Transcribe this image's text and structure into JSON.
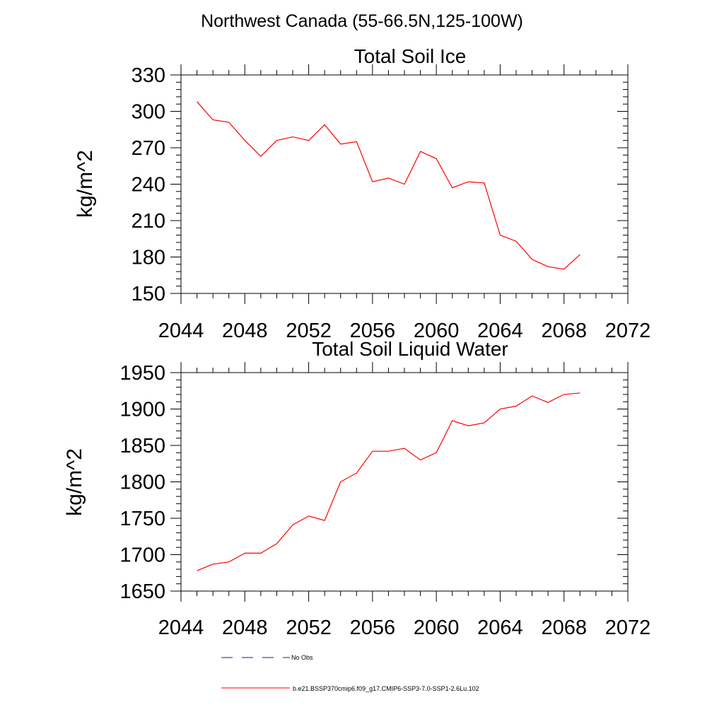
{
  "figure": {
    "title": "Northwest Canada (55-66.5N,125-100W)",
    "line_color": "#ff0000",
    "obs_color": "#1a1a80",
    "legend": {
      "obs_label": "No Obs",
      "model_label": "b.e21.BSSP370cmip6.f09_g17.CMIP6-SSP3-7.0-SSP1-2.6Lu.102"
    }
  },
  "chart_data": [
    {
      "type": "line",
      "title": "Total Soil Ice",
      "xlabel": "",
      "ylabel": "kg/m^2",
      "xlim": [
        2044,
        2072
      ],
      "ylim": [
        150,
        330
      ],
      "xticks": [
        2044,
        2048,
        2052,
        2056,
        2060,
        2064,
        2068,
        2072
      ],
      "yticks": [
        150,
        180,
        210,
        240,
        270,
        300,
        330
      ],
      "grid": false,
      "series": [
        {
          "name": "b.e21.BSSP370cmip6.f09_g17.CMIP6-SSP3-7.0-SSP1-2.6Lu.102",
          "x": [
            2045,
            2046,
            2047,
            2048,
            2049,
            2050,
            2051,
            2052,
            2053,
            2054,
            2055,
            2056,
            2057,
            2058,
            2059,
            2060,
            2061,
            2062,
            2063,
            2064,
            2065,
            2066,
            2067,
            2068,
            2069
          ],
          "values": [
            308,
            293,
            291,
            276,
            263,
            276,
            279,
            276,
            289,
            273,
            275,
            242,
            245,
            240,
            267,
            261,
            237,
            242,
            241,
            198,
            193,
            178,
            172,
            170,
            182
          ]
        }
      ]
    },
    {
      "type": "line",
      "title": "Total Soil Liquid Water",
      "xlabel": "",
      "ylabel": "kg/m^2",
      "xlim": [
        2044,
        2072
      ],
      "ylim": [
        1650,
        1950
      ],
      "xticks": [
        2044,
        2048,
        2052,
        2056,
        2060,
        2064,
        2068,
        2072
      ],
      "yticks": [
        1650,
        1700,
        1750,
        1800,
        1850,
        1900,
        1950
      ],
      "grid": false,
      "series": [
        {
          "name": "b.e21.BSSP370cmip6.f09_g17.CMIP6-SSP3-7.0-SSP1-2.6Lu.102",
          "x": [
            2045,
            2046,
            2047,
            2048,
            2049,
            2050,
            2051,
            2052,
            2053,
            2054,
            2055,
            2056,
            2057,
            2058,
            2059,
            2060,
            2061,
            2062,
            2063,
            2064,
            2065,
            2066,
            2067,
            2068,
            2069
          ],
          "values": [
            1678,
            1687,
            1690,
            1702,
            1702,
            1715,
            1741,
            1753,
            1747,
            1800,
            1812,
            1842,
            1842,
            1846,
            1830,
            1840,
            1884,
            1877,
            1881,
            1900,
            1904,
            1918,
            1909,
            1920,
            1922
          ]
        }
      ]
    }
  ]
}
